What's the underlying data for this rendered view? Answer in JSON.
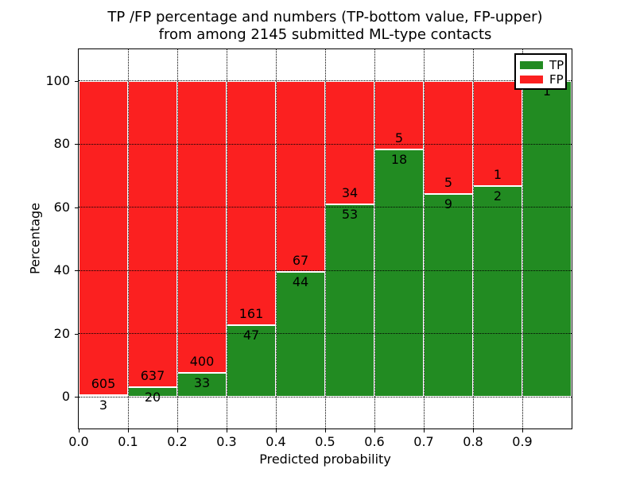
{
  "chart_data": {
    "type": "bar",
    "stacked": true,
    "orientation": "vertical",
    "title_line1": "TP /FP percentage and numbers (TP-bottom value, FP-upper)",
    "title_line2": "from among 2145 submitted ML-type contacts",
    "total_contacts": 2145,
    "xlabel": "Predicted probability",
    "ylabel": "Percentage",
    "xlim": [
      0.0,
      1.0
    ],
    "ylim": [
      -10,
      110
    ],
    "xtick_labels": [
      "0.0",
      "0.1",
      "0.2",
      "0.3",
      "0.4",
      "0.5",
      "0.6",
      "0.7",
      "0.8",
      "0.9"
    ],
    "xtick_values": [
      0.0,
      0.1,
      0.2,
      0.3,
      0.4,
      0.5,
      0.6,
      0.7,
      0.8,
      0.9
    ],
    "ytick_labels": [
      "0",
      "20",
      "40",
      "60",
      "80",
      "100"
    ],
    "ytick_values": [
      0,
      20,
      40,
      60,
      80,
      100
    ],
    "grid": {
      "visible": true,
      "style": "dotted",
      "color": "#000000",
      "axis": "both"
    },
    "bin_width": 0.1,
    "bin_starts": [
      0.0,
      0.1,
      0.2,
      0.3,
      0.4,
      0.5,
      0.6,
      0.7,
      0.8,
      0.9
    ],
    "series": [
      {
        "name": "TP",
        "role": "bottom",
        "color": "#228b22",
        "values": [
          3,
          20,
          33,
          47,
          44,
          53,
          18,
          9,
          2,
          1
        ]
      },
      {
        "name": "FP",
        "role": "upper",
        "color": "#fb2020",
        "values": [
          605,
          637,
          400,
          161,
          67,
          34,
          5,
          5,
          1,
          0
        ]
      }
    ],
    "bar_unit": "percent of bin total (TP+FP stacked to 100%)",
    "legend": {
      "position": "upper-right",
      "entries": [
        {
          "label": "TP",
          "color": "#228b22"
        },
        {
          "label": "FP",
          "color": "#fb2020"
        }
      ]
    },
    "colors": {
      "axis": "#000000",
      "bar_edge": "#ffffff",
      "background": "#ffffff"
    }
  }
}
